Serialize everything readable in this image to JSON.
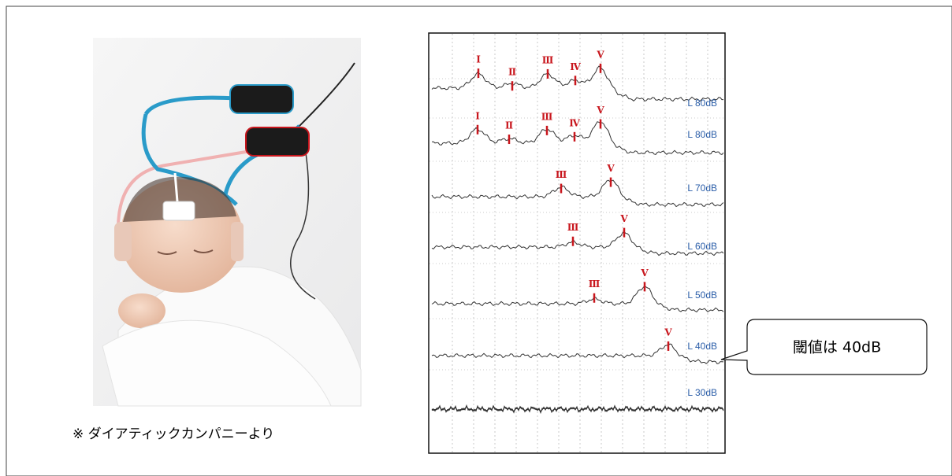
{
  "photo_credit": "※ ダイアティックカンパニーより",
  "traces": [
    {
      "label": "L 80dB",
      "peaks": [
        "Ⅰ",
        "Ⅱ",
        "Ⅲ",
        "Ⅳ",
        "Ⅴ"
      ]
    },
    {
      "label": "L 80dB",
      "peaks": [
        "Ⅰ",
        "Ⅱ",
        "Ⅲ",
        "Ⅳ",
        "Ⅴ"
      ]
    },
    {
      "label": "L 70dB",
      "peaks": [
        "Ⅲ",
        "Ⅴ"
      ]
    },
    {
      "label": "L 60dB",
      "peaks": [
        "Ⅲ",
        "Ⅴ"
      ]
    },
    {
      "label": "L 50dB",
      "peaks": [
        "Ⅲ",
        "Ⅴ"
      ]
    },
    {
      "label": "L 40dB",
      "peaks": [
        "Ⅴ"
      ]
    },
    {
      "label": "L 30dB",
      "peaks": []
    }
  ],
  "callout": "閾値は 40dB"
}
